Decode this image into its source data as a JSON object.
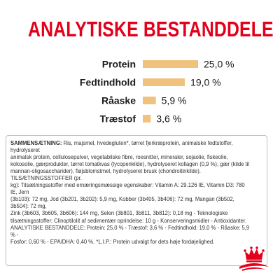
{
  "title": "ANALYTISKE BESTANDDELE",
  "chart_data": {
    "type": "bar",
    "orientation": "horizontal",
    "categories": [
      "Protein",
      "Fedtindhold",
      "Råaske",
      "Træstof"
    ],
    "values": [
      25.0,
      19.0,
      5.9,
      3.6
    ],
    "value_labels": [
      "25,0 %",
      "19,0 %",
      "5,9 %",
      "3,6 %"
    ],
    "xlim": [
      0,
      25
    ],
    "grid": false,
    "legend": "none",
    "bar_color": "#f1c27d",
    "text_color": "#1a1a1a"
  },
  "composition": {
    "heading": "SAMMENSÆTNING:",
    "lines": [
      "Ris, majsmel, hvedegluten*, tørret fjerkræprotein, animalske fedtstoffer, hydrolyseret",
      "animalsk protein, cellulosepulver, vegetabilske fibre, roesnitter, mineraler, sojaolie, fiskeolie,",
      "kokosolie, gærprodukter, tørret tomatkvas (lycopenkilde), hydrolyseret kollagen (0,9 %), gær (kilde til",
      "mannan-oligosaccharider), fløjsblomstmel, hydrolyseret brusk (chondroitinkilde). TILSÆTNINGSSTOFFER (pr.",
      "kg): Tilsætningsstoffer med ernæringsmæssige egenskaber: Vitamin A: 29.126 IE, Vitamin D3: 780 IE, Jern",
      "(3b103): 72 mg, Jod (3b201, 3b202): 5,9 mg, Kobber (3b405, 3b406): 72 mg, Mangan (3b502, 3b504): 72 mg,",
      "Zink (3b603, 3b605, 3b606): 144 mg, Selen (3b801, 3b811, 3b812): 0,18 mg - Teknologiske",
      "tilsætningsstoffer: Clinoptilolit af sedimentær oprindelse: 10 g - Konserveringsmidler - Antioxidanter.",
      "ANALYTISKE BESTANDDELE: Protein: 25,0 % - Træstof: 3,6 % - Fedtindhold: 19,0 % - Råaske: 5,9 % -",
      "Fosfor: 0,60 % - EPA/DHA: 0,40 %. *L.I.P.: Protein udvalgt for dets høje fordøjelighed."
    ]
  },
  "brand": {
    "logo_icon": "royal-canin-crown-icon",
    "accent_color": "#e2001a"
  }
}
